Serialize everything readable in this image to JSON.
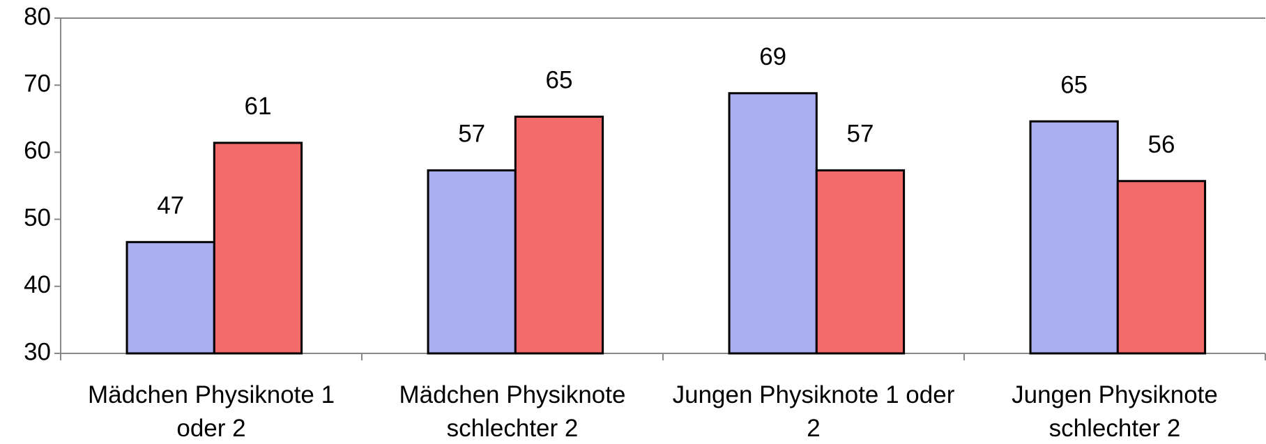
{
  "chart_data": {
    "type": "bar",
    "categories": [
      "Mädchen Physiknote 1 oder 2",
      "Mädchen Physiknote schlechter 2",
      "Jungen Physiknote 1 oder 2",
      "Jungen Physiknote schlechter 2"
    ],
    "series": [
      {
        "color": "#a9aef0",
        "values": [
          46.6,
          57.3,
          68.8,
          64.6
        ],
        "value_labels": [
          "47",
          "57",
          "69",
          "65"
        ]
      },
      {
        "color": "#f26a6a",
        "values": [
          61.4,
          65.3,
          57.3,
          55.7
        ],
        "value_labels": [
          "61",
          "65",
          "57",
          "56"
        ]
      }
    ],
    "ylim": [
      30,
      80
    ],
    "yticks": [
      30,
      40,
      50,
      60,
      70,
      80
    ],
    "grid": false
  }
}
